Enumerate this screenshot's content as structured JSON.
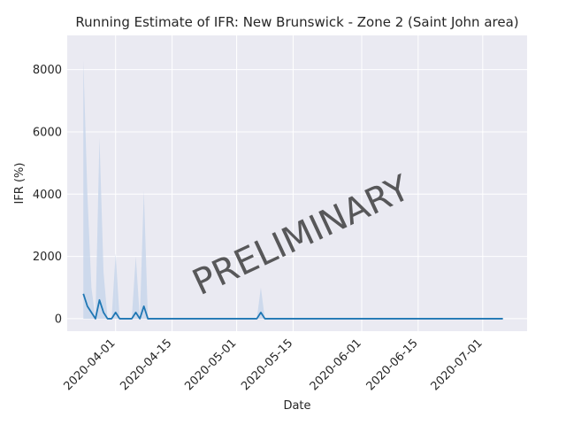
{
  "chart_data": {
    "type": "line",
    "title": "Running Estimate of IFR: New Brunswick - Zone 2 (Saint John area)",
    "xlabel": "Date",
    "ylabel": "IFR (%)",
    "watermark": "PRELIMINARY",
    "xlim": [
      "2020-03-20",
      "2020-07-12"
    ],
    "ylim": [
      -400,
      9100
    ],
    "grid": true,
    "x_ticks": [
      "2020-04-01",
      "2020-04-15",
      "2020-05-01",
      "2020-05-15",
      "2020-06-01",
      "2020-06-15",
      "2020-07-01"
    ],
    "y_ticks": [
      0,
      2000,
      4000,
      6000,
      8000
    ],
    "colors": {
      "line": "#1f77b4",
      "band": "#c5d4ea",
      "background": "#eaeaf2",
      "grid": "#ffffff",
      "watermark": "#a0a0a0"
    },
    "series": [
      {
        "x": [
          "2020-03-24",
          "2020-03-25",
          "2020-03-26",
          "2020-03-27",
          "2020-03-28",
          "2020-03-29",
          "2020-03-30",
          "2020-03-31",
          "2020-04-01",
          "2020-04-02",
          "2020-04-03",
          "2020-04-04",
          "2020-04-05",
          "2020-04-06",
          "2020-04-07",
          "2020-04-08",
          "2020-04-09",
          "2020-04-10",
          "2020-04-11",
          "2020-04-12",
          "2020-04-13",
          "2020-04-14",
          "2020-04-15",
          "2020-05-05",
          "2020-05-06",
          "2020-05-07",
          "2020-05-08",
          "2020-05-09",
          "2020-07-06"
        ],
        "y": [
          800,
          400,
          200,
          0,
          600,
          200,
          0,
          0,
          200,
          0,
          0,
          0,
          0,
          200,
          0,
          400,
          0,
          0,
          0,
          0,
          0,
          0,
          0,
          0,
          0,
          200,
          0,
          0,
          0
        ],
        "upper": [
          8300,
          4000,
          1000,
          0,
          5800,
          1500,
          0,
          0,
          2100,
          0,
          0,
          0,
          0,
          2000,
          0,
          4100,
          0,
          0,
          0,
          0,
          0,
          0,
          0,
          0,
          0,
          1000,
          0,
          0,
          0
        ],
        "lower": [
          0,
          0,
          0,
          0,
          0,
          0,
          0,
          0,
          0,
          0,
          0,
          0,
          0,
          0,
          0,
          0,
          0,
          0,
          0,
          0,
          0,
          0,
          0,
          0,
          0,
          0,
          0,
          0,
          0
        ]
      }
    ]
  }
}
